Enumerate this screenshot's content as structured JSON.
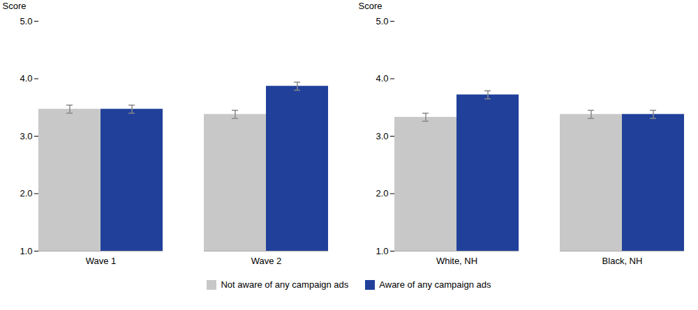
{
  "chart_data": [
    {
      "type": "bar",
      "categories": [
        "Wave 1",
        "Wave 2"
      ],
      "series": [
        {
          "name": "Not aware of any campaign ads",
          "color": "#c8c8c8",
          "values": [
            3.47,
            3.38
          ],
          "errors": [
            0.07,
            0.07
          ]
        },
        {
          "name": "Aware of any campaign ads",
          "color": "#20409a",
          "values": [
            3.47,
            3.87
          ],
          "errors": [
            0.07,
            0.07
          ]
        }
      ],
      "ylabel": "Score",
      "ylim": [
        1,
        5
      ],
      "yticks": [
        1,
        2,
        3,
        4,
        5
      ],
      "grid": false,
      "legend": "bottom"
    },
    {
      "type": "bar",
      "categories": [
        "White, NH",
        "Black, NH"
      ],
      "series": [
        {
          "name": "Not aware of any campaign ads",
          "color": "#c8c8c8",
          "values": [
            3.33,
            3.38
          ],
          "errors": [
            0.07,
            0.07
          ]
        },
        {
          "name": "Aware of any campaign ads",
          "color": "#20409a",
          "values": [
            3.72,
            3.38
          ],
          "errors": [
            0.07,
            0.07
          ]
        }
      ],
      "ylabel": "Score",
      "ylim": [
        1,
        5
      ],
      "yticks": [
        1,
        2,
        3,
        4,
        5
      ],
      "grid": false,
      "legend": "bottom"
    }
  ]
}
